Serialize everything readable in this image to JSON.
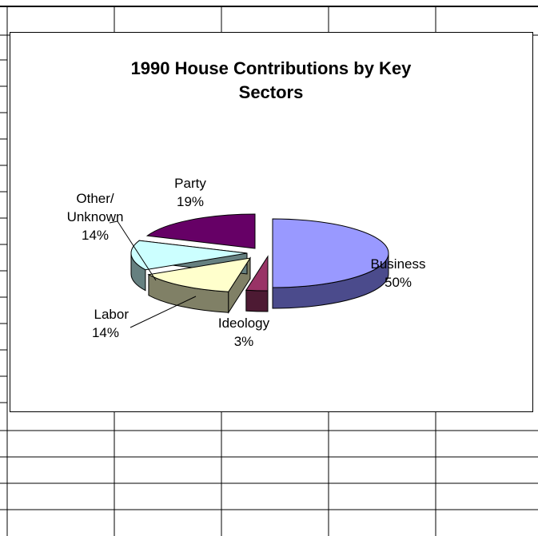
{
  "chart_data": {
    "type": "pie",
    "style": "3d-exploded-slices",
    "title": "1990 House Contributions by Key Sectors",
    "title_lines": [
      "1990 House Contributions by Key",
      "Sectors"
    ],
    "slices": [
      {
        "key": "business",
        "label_lines": [
          "Business",
          "50%"
        ],
        "value": 50,
        "color": "#9999ff",
        "side_color": "#4b4b8c"
      },
      {
        "key": "ideology",
        "label_lines": [
          "Ideology",
          "3%"
        ],
        "value": 3,
        "color": "#993366",
        "side_color": "#4d1a33"
      },
      {
        "key": "labor",
        "label_lines": [
          "Labor",
          "14%"
        ],
        "value": 14,
        "color": "#ffffcc",
        "side_color": "#808066"
      },
      {
        "key": "other-unknown",
        "label_lines": [
          "Other/",
          "Unknown",
          "14%"
        ],
        "value": 14,
        "color": "#ccffff",
        "side_color": "#668080"
      },
      {
        "key": "party",
        "label_lines": [
          "Party",
          "19%"
        ],
        "value": 19,
        "color": "#660066",
        "side_color": "#330033"
      }
    ],
    "legend": "none",
    "labels": "outside-with-leader-lines"
  },
  "colors": {
    "gridline": "#000000",
    "chart_border": "#000000",
    "background": "#ffffff"
  }
}
